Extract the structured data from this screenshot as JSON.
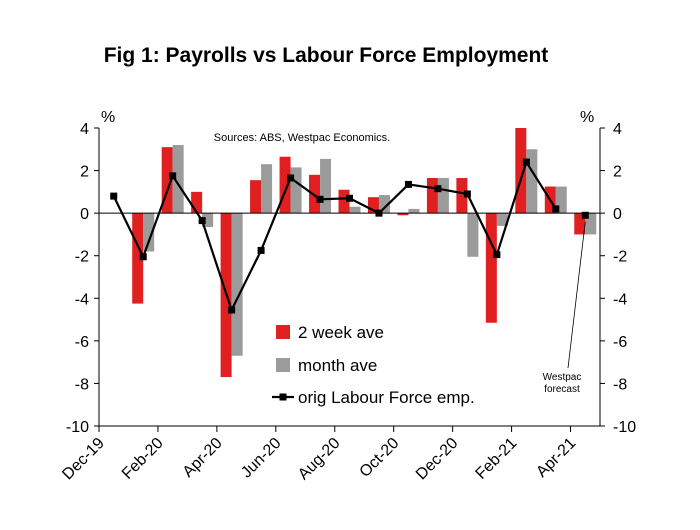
{
  "chart_data": {
    "type": "bar",
    "title": "Fig 1: Payrolls vs Labour Force Employment",
    "source": "Sources: ABS, Westpac Economics.",
    "y_unit_left": "%",
    "y_unit_right": "%",
    "ylim": [
      -10,
      4
    ],
    "yticks": [
      4,
      2,
      0,
      -2,
      -4,
      -6,
      -8,
      -10
    ],
    "ytick_labels": [
      "4",
      "2",
      "0",
      "-2",
      "-4",
      "-6",
      "-8",
      "-10"
    ],
    "x_tick_labels": [
      "Dec-19",
      "Feb-20",
      "Apr-20",
      "Jun-20",
      "Aug-20",
      "Oct-20",
      "Dec-20",
      "Feb-21",
      "Apr-21"
    ],
    "x_tick_months": [
      0,
      2,
      4,
      6,
      8,
      10,
      12,
      14,
      16
    ],
    "months": [
      "Dec-19",
      "Jan-20",
      "Feb-20",
      "Mar-20",
      "Apr-20",
      "May-20",
      "Jun-20",
      "Jul-20",
      "Aug-20",
      "Sep-20",
      "Oct-20",
      "Nov-20",
      "Dec-20",
      "Jan-21",
      "Feb-21",
      "Mar-21",
      "Apr-21"
    ],
    "series": [
      {
        "name": "2 week ave",
        "type": "bar",
        "color": "#e02020",
        "values": [
          null,
          -4.25,
          3.1,
          1.0,
          -7.7,
          1.55,
          2.65,
          1.8,
          1.1,
          0.75,
          -0.1,
          1.65,
          1.65,
          -5.15,
          4.0,
          1.25,
          -1.0
        ]
      },
      {
        "name": "month ave",
        "type": "bar",
        "color": "#9b9b9b",
        "values": [
          null,
          -1.8,
          3.2,
          -0.65,
          -6.7,
          2.3,
          2.15,
          2.55,
          0.3,
          0.85,
          0.2,
          1.65,
          -2.05,
          -0.6,
          3.0,
          1.25,
          -1.0
        ]
      },
      {
        "name": "orig Labour Force emp.",
        "type": "line",
        "color": "#000000",
        "values": [
          0.8,
          -2.05,
          1.75,
          -0.35,
          -4.55,
          -1.75,
          1.65,
          0.65,
          0.7,
          0.0,
          1.35,
          1.15,
          0.9,
          -1.95,
          2.4,
          0.2,
          -0.1
        ]
      }
    ],
    "legend": {
      "placement": "lower-center",
      "entries": [
        "2 week ave",
        "month ave",
        "orig Labour Force emp."
      ]
    },
    "annotation": {
      "lines": [
        "Westpac",
        "forecast"
      ],
      "target_month": 16
    },
    "grid": false
  }
}
